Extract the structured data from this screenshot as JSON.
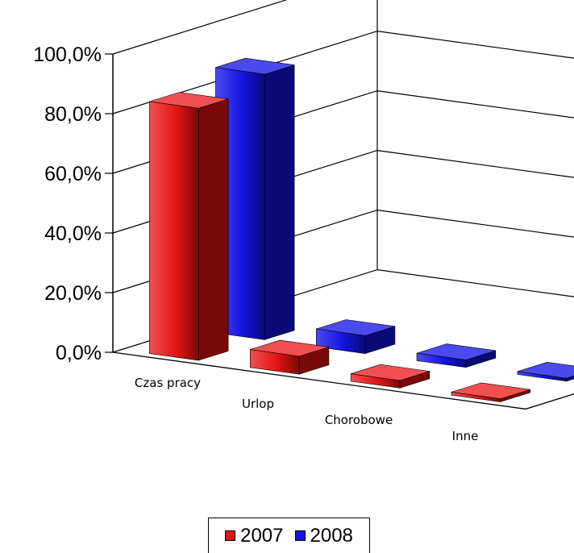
{
  "chart_data": {
    "type": "bar",
    "categories": [
      "Czas pracy",
      "Urlop",
      "Chorobowe",
      "Inne"
    ],
    "series": [
      {
        "name": "2007",
        "values": [
          84.5,
          6.0,
          2.5,
          1.0
        ],
        "color": "#e21414",
        "side_color": "#7a0808",
        "top_color": "#f25050"
      },
      {
        "name": "2008",
        "values": [
          89.0,
          6.0,
          2.5,
          1.0
        ],
        "color": "#1414e0",
        "side_color": "#0a0a78",
        "top_color": "#4a4af0"
      }
    ],
    "yticks": [
      "0,0%",
      "20,0%",
      "40,0%",
      "60,0%",
      "80,0%",
      "100,0%"
    ],
    "ylim": [
      0,
      100
    ],
    "grid": true,
    "legend_position": "bottom"
  }
}
